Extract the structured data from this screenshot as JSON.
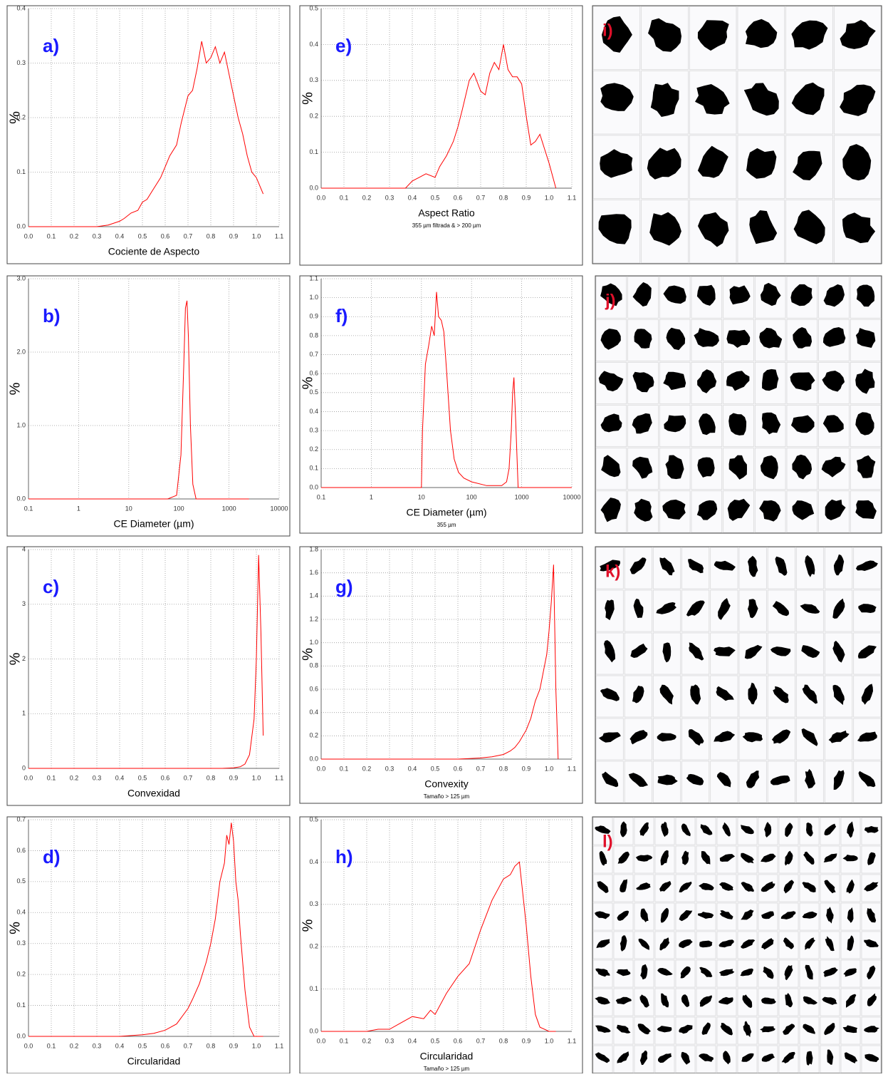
{
  "chart_data": [
    {
      "type": "line",
      "panel": "a)",
      "ylabel": "%",
      "xlabel": "Cociente de Aspecto",
      "color": "#ff0000",
      "grid": true,
      "x": [
        0.0,
        0.3,
        0.35,
        0.4,
        0.42,
        0.45,
        0.48,
        0.5,
        0.52,
        0.55,
        0.58,
        0.6,
        0.62,
        0.65,
        0.67,
        0.7,
        0.72,
        0.74,
        0.76,
        0.78,
        0.8,
        0.82,
        0.84,
        0.86,
        0.88,
        0.9,
        0.92,
        0.94,
        0.96,
        0.98,
        1.0,
        1.03
      ],
      "values": [
        0,
        0,
        0.003,
        0.01,
        0.015,
        0.025,
        0.03,
        0.045,
        0.05,
        0.07,
        0.09,
        0.11,
        0.13,
        0.15,
        0.19,
        0.24,
        0.25,
        0.29,
        0.34,
        0.3,
        0.31,
        0.33,
        0.3,
        0.32,
        0.28,
        0.24,
        0.2,
        0.17,
        0.13,
        0.1,
        0.09,
        0.06
      ],
      "xlim": [
        0,
        1.1
      ],
      "xticks": [
        {
          "value": 0,
          "label": "0.0"
        },
        0.1,
        0.2,
        0.3,
        0.4,
        0.5,
        0.6,
        0.7,
        0.8,
        0.9,
        {
          "value": 1,
          "label": "1.0"
        },
        1.1
      ],
      "ylim": [
        0,
        0.4
      ],
      "yticks": [
        {
          "value": 0,
          "label": "0.0"
        },
        0.1,
        0.2,
        0.3,
        0.4
      ]
    },
    {
      "type": "line",
      "panel": "b)",
      "ylabel": "%",
      "xlabel": "CE Diameter (µm)",
      "color": "#ff0000",
      "grid": true,
      "xscale": "log",
      "x": [
        0.1,
        60,
        90,
        110,
        125,
        135,
        145,
        155,
        170,
        190,
        220,
        2500
      ],
      "values": [
        0,
        0,
        0.05,
        0.6,
        1.8,
        2.6,
        2.7,
        2.2,
        1.0,
        0.2,
        0,
        0
      ],
      "xlim": [
        0.1,
        10000
      ],
      "xticks": [
        0.1,
        1,
        10,
        100,
        1000,
        10000
      ],
      "ylim": [
        0,
        3
      ],
      "yticks": [
        {
          "value": 0,
          "label": "0.0"
        },
        {
          "value": 1,
          "label": "1.0"
        },
        {
          "value": 2,
          "label": "2.0"
        },
        {
          "value": 3,
          "label": "3.0"
        }
      ]
    },
    {
      "type": "line",
      "panel": "c)",
      "ylabel": "%",
      "xlabel": "Convexidad",
      "color": "#ff0000",
      "grid": true,
      "x": [
        0,
        0.85,
        0.9,
        0.93,
        0.95,
        0.97,
        0.99,
        1.0,
        1.01,
        1.02,
        1.03
      ],
      "values": [
        0,
        0,
        0.01,
        0.03,
        0.08,
        0.25,
        0.9,
        2.0,
        3.9,
        2.5,
        0.6
      ],
      "xlim": [
        0,
        1.1
      ],
      "xticks": [
        {
          "value": 0,
          "label": "0.0"
        },
        0.1,
        0.2,
        0.3,
        0.4,
        0.5,
        0.6,
        0.7,
        0.8,
        0.9,
        {
          "value": 1,
          "label": "1.0"
        },
        1.1
      ],
      "ylim": [
        0,
        4
      ],
      "yticks": [
        0,
        1,
        2,
        3,
        4
      ]
    },
    {
      "type": "line",
      "panel": "d)",
      "ylabel": "%",
      "xlabel": "Circularidad",
      "color": "#ff0000",
      "grid": true,
      "x": [
        0,
        0.4,
        0.5,
        0.55,
        0.6,
        0.65,
        0.7,
        0.72,
        0.75,
        0.78,
        0.8,
        0.82,
        0.84,
        0.86,
        0.87,
        0.88,
        0.89,
        0.9,
        0.91,
        0.92,
        0.93,
        0.95,
        0.97,
        0.99,
        1.03
      ],
      "values": [
        0,
        0,
        0.005,
        0.01,
        0.02,
        0.04,
        0.09,
        0.12,
        0.17,
        0.24,
        0.3,
        0.38,
        0.5,
        0.56,
        0.65,
        0.62,
        0.69,
        0.63,
        0.5,
        0.44,
        0.33,
        0.15,
        0.03,
        0,
        0
      ],
      "xlim": [
        0,
        1.1
      ],
      "xticks": [
        {
          "value": 0,
          "label": "0.0"
        },
        0.1,
        0.2,
        0.3,
        0.4,
        0.5,
        0.6,
        0.7,
        0.8,
        0.9,
        {
          "value": 1,
          "label": "1.0"
        },
        1.1
      ],
      "ylim": [
        0,
        0.7
      ],
      "yticks": [
        {
          "value": 0,
          "label": "0.0"
        },
        0.1,
        0.2,
        0.3,
        0.4,
        0.5,
        0.6,
        0.7
      ]
    },
    {
      "type": "line",
      "panel": "e)",
      "ylabel": "%",
      "xlabel": "Aspect Ratio",
      "subtitle": "355 µm filtrada & > 200 µm",
      "color": "#ff0000",
      "grid": true,
      "x": [
        0,
        0.37,
        0.4,
        0.43,
        0.46,
        0.5,
        0.52,
        0.55,
        0.58,
        0.6,
        0.62,
        0.65,
        0.67,
        0.7,
        0.72,
        0.74,
        0.76,
        0.78,
        0.8,
        0.82,
        0.84,
        0.86,
        0.88,
        0.9,
        0.92,
        0.94,
        0.96,
        0.98,
        1.0,
        1.03
      ],
      "values": [
        0,
        0,
        0.02,
        0.03,
        0.04,
        0.03,
        0.06,
        0.09,
        0.13,
        0.17,
        0.22,
        0.3,
        0.32,
        0.27,
        0.26,
        0.32,
        0.35,
        0.33,
        0.4,
        0.33,
        0.31,
        0.31,
        0.29,
        0.2,
        0.12,
        0.13,
        0.15,
        0.11,
        0.07,
        0
      ],
      "xlim": [
        0,
        1.1
      ],
      "xticks": [
        {
          "value": 0,
          "label": "0.0"
        },
        0.1,
        0.2,
        0.3,
        0.4,
        0.5,
        0.6,
        0.7,
        0.8,
        0.9,
        {
          "value": 1,
          "label": "1.0"
        },
        1.1
      ],
      "ylim": [
        0,
        0.5
      ],
      "yticks": [
        {
          "value": 0,
          "label": "0.0"
        },
        0.1,
        0.2,
        0.3,
        0.4,
        0.5
      ]
    },
    {
      "type": "line",
      "panel": "f)",
      "ylabel": "%",
      "xlabel": "CE Diameter (µm)",
      "subtitle": "355 µm",
      "color": "#ff0000",
      "grid": true,
      "xscale": "log",
      "x": [
        0.1,
        10,
        10.5,
        12,
        14,
        16,
        18,
        20,
        22,
        25,
        28,
        32,
        38,
        45,
        55,
        70,
        100,
        200,
        400,
        500,
        560,
        620,
        660,
        700,
        760,
        850,
        10000
      ],
      "values": [
        0,
        0,
        0.3,
        0.65,
        0.75,
        0.85,
        0.8,
        1.03,
        0.9,
        0.88,
        0.82,
        0.6,
        0.3,
        0.15,
        0.08,
        0.05,
        0.03,
        0.01,
        0.01,
        0.03,
        0.1,
        0.3,
        0.5,
        0.58,
        0.35,
        0,
        0
      ],
      "xlim": [
        0.1,
        10000
      ],
      "xticks": [
        0.1,
        1,
        10,
        100,
        1000,
        10000
      ],
      "ylim": [
        0,
        1.1
      ],
      "yticks": [
        {
          "value": 0,
          "label": "0.0"
        },
        0.1,
        0.2,
        0.3,
        0.4,
        0.5,
        0.6,
        0.7,
        0.8,
        0.9,
        {
          "value": 1,
          "label": "1.0"
        },
        1.1
      ]
    },
    {
      "type": "line",
      "panel": "g)",
      "ylabel": "%",
      "xlabel": "Convexity",
      "subtitle": "Tamaño > 125 µm",
      "color": "#ff0000",
      "grid": true,
      "x": [
        0,
        0.6,
        0.65,
        0.7,
        0.75,
        0.8,
        0.83,
        0.85,
        0.87,
        0.9,
        0.92,
        0.94,
        0.96,
        0.98,
        0.99,
        1.0,
        1.01,
        1.02,
        1.03,
        1.04
      ],
      "values": [
        0,
        0,
        0.005,
        0.01,
        0.02,
        0.04,
        0.07,
        0.1,
        0.15,
        0.25,
        0.35,
        0.5,
        0.6,
        0.8,
        0.9,
        1.1,
        1.35,
        1.67,
        0.6,
        0
      ],
      "xlim": [
        0,
        1.1
      ],
      "xticks": [
        {
          "value": 0,
          "label": "0.0"
        },
        0.1,
        0.2,
        0.3,
        0.4,
        0.5,
        0.6,
        0.7,
        0.8,
        0.9,
        {
          "value": 1,
          "label": "1.0"
        },
        1.1
      ],
      "ylim": [
        0,
        1.8
      ],
      "yticks": [
        {
          "value": 0,
          "label": "0.0"
        },
        0.2,
        0.4,
        0.6,
        0.8,
        {
          "value": 1,
          "label": "1.0"
        },
        1.2,
        1.4,
        1.6,
        1.8
      ]
    },
    {
      "type": "line",
      "panel": "h)",
      "ylabel": "%",
      "xlabel": "Circularidad",
      "subtitle": "Tamaño > 125 µm",
      "color": "#ff0000",
      "grid": true,
      "x": [
        0,
        0.2,
        0.25,
        0.3,
        0.35,
        0.4,
        0.45,
        0.48,
        0.5,
        0.55,
        0.6,
        0.65,
        0.7,
        0.75,
        0.8,
        0.83,
        0.85,
        0.87,
        0.88,
        0.9,
        0.92,
        0.94,
        0.96,
        1.0,
        1.03
      ],
      "values": [
        0,
        0,
        0.005,
        0.005,
        0.02,
        0.035,
        0.03,
        0.05,
        0.04,
        0.09,
        0.13,
        0.16,
        0.24,
        0.31,
        0.36,
        0.37,
        0.39,
        0.4,
        0.35,
        0.25,
        0.13,
        0.04,
        0.01,
        0,
        0
      ],
      "xlim": [
        0,
        1.1
      ],
      "xticks": [
        {
          "value": 0,
          "label": "0.0"
        },
        0.1,
        0.2,
        0.3,
        0.4,
        0.5,
        0.6,
        0.7,
        0.8,
        0.9,
        {
          "value": 1,
          "label": "1.0"
        },
        1.1
      ],
      "ylim": [
        0,
        0.5
      ],
      "yticks": [
        {
          "value": 0,
          "label": "0.0"
        },
        0.1,
        0.2,
        0.3,
        0.4,
        0.5
      ]
    }
  ],
  "image_panels": [
    {
      "label": "i)"
    },
    {
      "label": "j)"
    },
    {
      "label": "k)"
    },
    {
      "label": "l)"
    }
  ]
}
